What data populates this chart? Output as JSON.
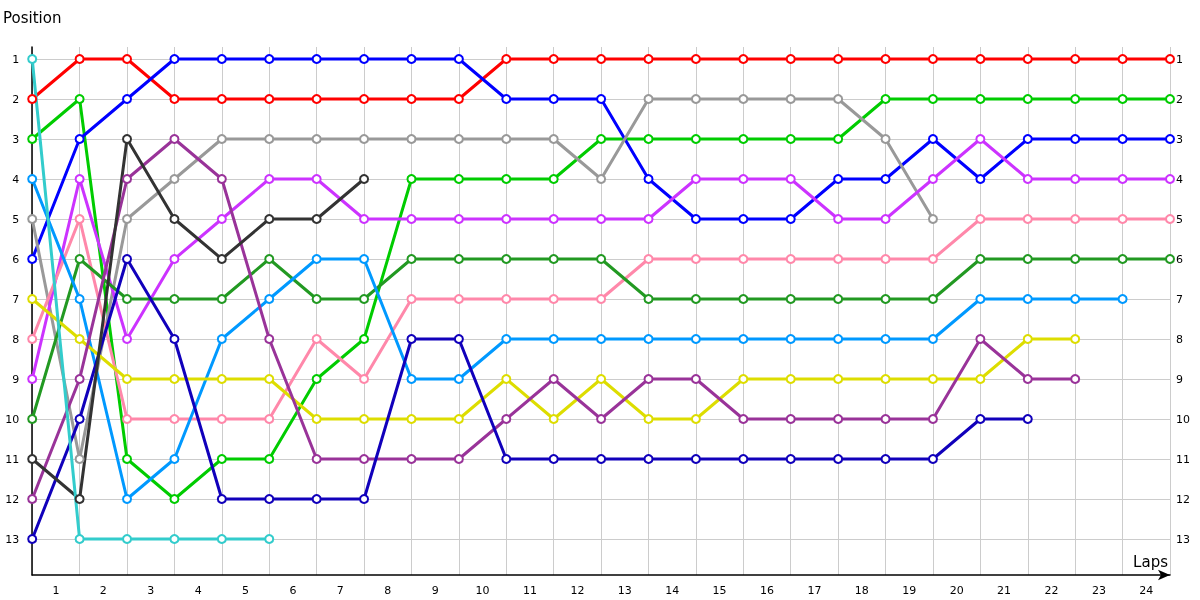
{
  "chart_data": {
    "type": "line",
    "xlabel": "Laps",
    "ylabel": "Position",
    "x": [
      0,
      1,
      2,
      3,
      4,
      5,
      6,
      7,
      8,
      9,
      10,
      11,
      12,
      13,
      14,
      15,
      16,
      17,
      18,
      19,
      20,
      21,
      22,
      23,
      24
    ],
    "xlim": [
      0,
      24
    ],
    "xticks": [
      {
        "value": 0,
        "label": null
      },
      {
        "value": 0.5,
        "label": "1"
      },
      {
        "value": 1,
        "label": null
      },
      {
        "value": 1.5,
        "label": "2"
      },
      {
        "value": 2,
        "label": null
      },
      {
        "value": 2.5,
        "label": "3"
      },
      {
        "value": 3,
        "label": null
      },
      {
        "value": 3.5,
        "label": "4"
      },
      {
        "value": 4,
        "label": null
      },
      {
        "value": 4.5,
        "label": "5"
      },
      {
        "value": 5,
        "label": null
      },
      {
        "value": 5.5,
        "label": "6"
      },
      {
        "value": 6,
        "label": null
      },
      {
        "value": 6.5,
        "label": "7"
      },
      {
        "value": 7,
        "label": null
      },
      {
        "value": 7.5,
        "label": "8"
      },
      {
        "value": 8,
        "label": null
      },
      {
        "value": 8.5,
        "label": "9"
      },
      {
        "value": 9,
        "label": null
      },
      {
        "value": 9.5,
        "label": "10"
      },
      {
        "value": 10,
        "label": null
      },
      {
        "value": 10.5,
        "label": "11"
      },
      {
        "value": 11,
        "label": null
      },
      {
        "value": 11.5,
        "label": "12"
      },
      {
        "value": 12,
        "label": null
      },
      {
        "value": 12.5,
        "label": "13"
      },
      {
        "value": 13,
        "label": null
      },
      {
        "value": 13.5,
        "label": "14"
      },
      {
        "value": 14,
        "label": null
      },
      {
        "value": 14.5,
        "label": "15"
      },
      {
        "value": 15,
        "label": null
      },
      {
        "value": 15.5,
        "label": "16"
      },
      {
        "value": 16,
        "label": null
      },
      {
        "value": 16.5,
        "label": "17"
      },
      {
        "value": 17,
        "label": null
      },
      {
        "value": 17.5,
        "label": "18"
      },
      {
        "value": 18,
        "label": null
      },
      {
        "value": 18.5,
        "label": "19"
      },
      {
        "value": 19,
        "label": null
      },
      {
        "value": 19.5,
        "label": "20"
      },
      {
        "value": 20,
        "label": null
      },
      {
        "value": 20.5,
        "label": "21"
      },
      {
        "value": 21,
        "label": null
      },
      {
        "value": 21.5,
        "label": "22"
      },
      {
        "value": 22,
        "label": null
      },
      {
        "value": 22.5,
        "label": "23"
      },
      {
        "value": 23,
        "label": null
      },
      {
        "value": 23.5,
        "label": "24"
      },
      {
        "value": 24,
        "label": null
      }
    ],
    "ylim": [
      13.9,
      0.7
    ],
    "yticks": [
      1,
      2,
      3,
      4,
      5,
      6,
      7,
      8,
      9,
      10,
      11,
      12,
      13
    ],
    "y2lim": [
      13.9,
      0.7
    ],
    "y2ticks": [
      1,
      2,
      3,
      4,
      5,
      6,
      7,
      8,
      9,
      10,
      11,
      12,
      13
    ],
    "grid": true,
    "marker": "circle",
    "line_style": "solid",
    "series": [
      {
        "color": "#ff0000",
        "values": [
          2,
          1,
          1,
          2,
          2,
          2,
          2,
          2,
          2,
          2,
          1,
          1,
          1,
          1,
          1,
          1,
          1,
          1,
          1,
          1,
          1,
          1,
          1,
          1,
          1
        ]
      },
      {
        "color": "#00cc00",
        "values": [
          3,
          2,
          11,
          12,
          11,
          11,
          9,
          8,
          4,
          4,
          4,
          4,
          3,
          3,
          3,
          3,
          3,
          3,
          2,
          2,
          2,
          2,
          2,
          2,
          2
        ]
      },
      {
        "color": "#0000ff",
        "values": [
          6,
          3,
          2,
          1,
          1,
          1,
          1,
          1,
          1,
          1,
          2,
          2,
          2,
          4,
          5,
          5,
          5,
          4,
          4,
          3,
          4,
          3,
          3,
          3,
          3
        ]
      },
      {
        "color": "#999999",
        "values": [
          5,
          11,
          5,
          4,
          3,
          3,
          3,
          3,
          3,
          3,
          3,
          3,
          4,
          2,
          2,
          2,
          2,
          2,
          3,
          5,
          null,
          null,
          null,
          null,
          null
        ]
      },
      {
        "color": "#cc33ff",
        "values": [
          9,
          4,
          8,
          6,
          5,
          4,
          4,
          5,
          5,
          5,
          5,
          5,
          5,
          5,
          4,
          4,
          4,
          5,
          5,
          4,
          3,
          4,
          4,
          4,
          4
        ]
      },
      {
        "color": "#ff88aa",
        "values": [
          8,
          5,
          10,
          10,
          10,
          10,
          8,
          9,
          7,
          7,
          7,
          7,
          7,
          6,
          6,
          6,
          6,
          6,
          6,
          6,
          5,
          5,
          5,
          5,
          5
        ]
      },
      {
        "color": "#229922",
        "values": [
          10,
          6,
          7,
          7,
          7,
          6,
          7,
          7,
          6,
          6,
          6,
          6,
          6,
          7,
          7,
          7,
          7,
          7,
          7,
          7,
          6,
          6,
          6,
          6,
          6
        ]
      },
      {
        "color": "#0099ff",
        "values": [
          4,
          7,
          12,
          11,
          8,
          7,
          6,
          6,
          9,
          9,
          8,
          8,
          8,
          8,
          8,
          8,
          8,
          8,
          8,
          8,
          7,
          7,
          7,
          7,
          null
        ]
      },
      {
        "color": "#dddd00",
        "values": [
          7,
          8,
          9,
          9,
          9,
          9,
          10,
          10,
          10,
          10,
          9,
          10,
          9,
          10,
          10,
          9,
          9,
          9,
          9,
          9,
          9,
          8,
          8,
          null,
          null
        ]
      },
      {
        "color": "#993399",
        "values": [
          12,
          9,
          4,
          3,
          4,
          8,
          11,
          11,
          11,
          11,
          10,
          9,
          10,
          9,
          9,
          10,
          10,
          10,
          10,
          10,
          8,
          9,
          9,
          null,
          null
        ]
      },
      {
        "color": "#1100bb",
        "values": [
          13,
          10,
          6,
          8,
          12,
          12,
          12,
          12,
          8,
          8,
          11,
          11,
          11,
          11,
          11,
          11,
          11,
          11,
          11,
          11,
          10,
          10,
          null,
          null,
          null
        ]
      },
      {
        "color": "#333333",
        "values": [
          11,
          12,
          3,
          5,
          6,
          5,
          5,
          4,
          null,
          null,
          null,
          null,
          null,
          null,
          null,
          null,
          null,
          null,
          null,
          null,
          null,
          null,
          null,
          null,
          null
        ]
      },
      {
        "color": "#33cccc",
        "values": [
          1,
          13,
          13,
          13,
          13,
          13,
          null,
          null,
          null,
          null,
          null,
          null,
          null,
          null,
          null,
          null,
          null,
          null,
          null,
          null,
          null,
          null,
          null,
          null,
          null
        ]
      }
    ]
  }
}
